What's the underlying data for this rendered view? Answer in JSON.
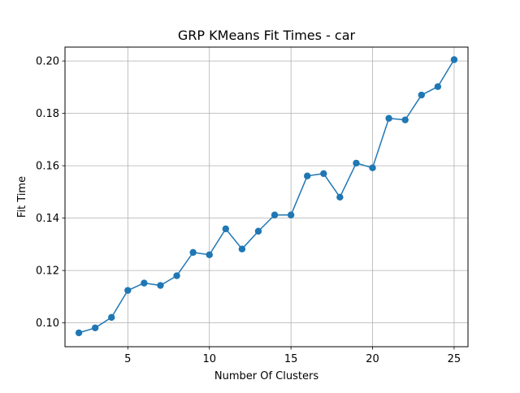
{
  "chart_data": {
    "type": "line",
    "title": "GRP KMeans Fit Times - car",
    "xlabel": "Number Of Clusters",
    "ylabel": "Fit Time",
    "xlim": [
      1.15,
      25.85
    ],
    "ylim": [
      0.0909,
      0.2053
    ],
    "x_ticks": [
      5,
      10,
      15,
      20,
      25
    ],
    "x_tick_labels": [
      "5",
      "10",
      "15",
      "20",
      "25"
    ],
    "y_ticks": [
      0.1,
      0.12,
      0.14,
      0.16,
      0.18,
      0.2
    ],
    "y_tick_labels": [
      "0.10",
      "0.12",
      "0.14",
      "0.16",
      "0.18",
      "0.20"
    ],
    "grid": true,
    "line_color": "#1f77b4",
    "marker": "circle",
    "series": [
      {
        "name": "fit time",
        "x": [
          2,
          3,
          4,
          5,
          6,
          7,
          8,
          9,
          10,
          11,
          12,
          13,
          14,
          15,
          16,
          17,
          18,
          19,
          20,
          21,
          22,
          23,
          24,
          25
        ],
        "values": [
          0.0962,
          0.0981,
          0.1021,
          0.1124,
          0.1152,
          0.1143,
          0.118,
          0.1269,
          0.126,
          0.1359,
          0.1282,
          0.135,
          0.1412,
          0.1412,
          0.1561,
          0.157,
          0.148,
          0.161,
          0.1592,
          0.1781,
          0.1775,
          0.187,
          0.1902,
          0.2005
        ]
      }
    ]
  }
}
